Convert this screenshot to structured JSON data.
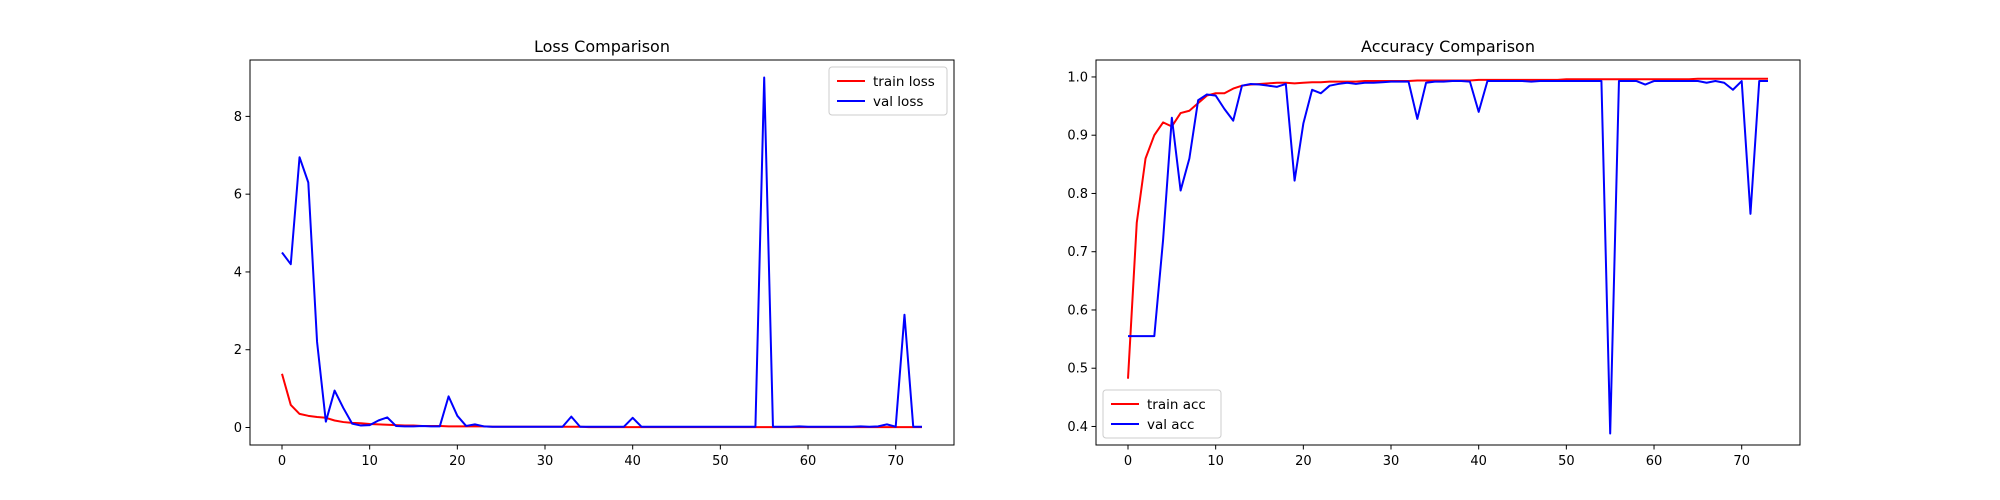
{
  "chart_data": [
    {
      "type": "line",
      "title": "Loss Comparison",
      "xlabel": "",
      "ylabel": "",
      "xlim": [
        -3.65,
        76.65
      ],
      "ylim": [
        -0.45,
        9.45
      ],
      "xticks": [
        0,
        10,
        20,
        30,
        40,
        50,
        60,
        70
      ],
      "yticks": [
        0,
        2,
        4,
        6,
        8
      ],
      "grid": false,
      "legend_position": "top-right",
      "series": [
        {
          "name": "train loss",
          "color": "#ff0000",
          "values": [
            1.38,
            0.58,
            0.35,
            0.3,
            0.27,
            0.25,
            0.18,
            0.14,
            0.12,
            0.11,
            0.09,
            0.08,
            0.07,
            0.06,
            0.05,
            0.05,
            0.04,
            0.04,
            0.04,
            0.03,
            0.03,
            0.03,
            0.03,
            0.03,
            0.02,
            0.02,
            0.02,
            0.02,
            0.02,
            0.02,
            0.02,
            0.02,
            0.02,
            0.02,
            0.02,
            0.01,
            0.01,
            0.01,
            0.01,
            0.01,
            0.01,
            0.01,
            0.01,
            0.01,
            0.01,
            0.01,
            0.01,
            0.01,
            0.01,
            0.01,
            0.01,
            0.01,
            0.01,
            0.01,
            0.01,
            0.01,
            0.01,
            0.01,
            0.01,
            0.01,
            0.01,
            0.01,
            0.01,
            0.01,
            0.01,
            0.01,
            0.01,
            0.01,
            0.01,
            0.01,
            0.01,
            0.01,
            0.01,
            0.01
          ]
        },
        {
          "name": "val loss",
          "color": "#0000ff",
          "values": [
            4.5,
            4.2,
            6.95,
            6.3,
            2.2,
            0.15,
            0.95,
            0.5,
            0.1,
            0.05,
            0.06,
            0.18,
            0.26,
            0.04,
            0.03,
            0.03,
            0.04,
            0.03,
            0.03,
            0.8,
            0.3,
            0.04,
            0.08,
            0.03,
            0.02,
            0.02,
            0.02,
            0.02,
            0.02,
            0.02,
            0.02,
            0.02,
            0.02,
            0.28,
            0.02,
            0.02,
            0.02,
            0.02,
            0.02,
            0.02,
            0.25,
            0.02,
            0.02,
            0.02,
            0.02,
            0.02,
            0.02,
            0.02,
            0.02,
            0.02,
            0.02,
            0.02,
            0.02,
            0.02,
            0.02,
            9.0,
            0.02,
            0.02,
            0.02,
            0.03,
            0.02,
            0.02,
            0.02,
            0.02,
            0.02,
            0.02,
            0.03,
            0.02,
            0.03,
            0.08,
            0.02,
            2.9,
            0.02,
            0.02
          ]
        }
      ]
    },
    {
      "type": "line",
      "title": "Accuracy Comparison",
      "xlabel": "",
      "ylabel": "",
      "xlim": [
        -3.65,
        76.65
      ],
      "ylim": [
        0.3682,
        1.0291
      ],
      "xticks": [
        0,
        10,
        20,
        30,
        40,
        50,
        60,
        70
      ],
      "yticks": [
        0.4,
        0.5,
        0.6,
        0.7,
        0.8,
        0.9,
        1.0
      ],
      "grid": false,
      "legend_position": "bottom-left",
      "series": [
        {
          "name": "train acc",
          "color": "#ff0000",
          "values": [
            0.482,
            0.75,
            0.86,
            0.9,
            0.922,
            0.915,
            0.938,
            0.942,
            0.955,
            0.968,
            0.972,
            0.972,
            0.98,
            0.985,
            0.987,
            0.988,
            0.989,
            0.99,
            0.99,
            0.989,
            0.99,
            0.991,
            0.991,
            0.992,
            0.992,
            0.992,
            0.992,
            0.993,
            0.993,
            0.993,
            0.993,
            0.993,
            0.993,
            0.994,
            0.994,
            0.994,
            0.994,
            0.994,
            0.994,
            0.994,
            0.995,
            0.995,
            0.995,
            0.995,
            0.995,
            0.995,
            0.995,
            0.995,
            0.995,
            0.995,
            0.996,
            0.996,
            0.996,
            0.996,
            0.996,
            0.996,
            0.996,
            0.996,
            0.996,
            0.996,
            0.996,
            0.996,
            0.996,
            0.996,
            0.996,
            0.997,
            0.997,
            0.997,
            0.997,
            0.997,
            0.997,
            0.997,
            0.997,
            0.997
          ]
        },
        {
          "name": "val acc",
          "color": "#0000ff",
          "values": [
            0.555,
            0.555,
            0.555,
            0.555,
            0.72,
            0.93,
            0.805,
            0.86,
            0.96,
            0.97,
            0.968,
            0.945,
            0.925,
            0.985,
            0.988,
            0.987,
            0.985,
            0.983,
            0.988,
            0.822,
            0.92,
            0.978,
            0.972,
            0.985,
            0.988,
            0.99,
            0.988,
            0.99,
            0.99,
            0.991,
            0.992,
            0.992,
            0.992,
            0.928,
            0.99,
            0.992,
            0.992,
            0.993,
            0.993,
            0.992,
            0.94,
            0.993,
            0.993,
            0.993,
            0.993,
            0.993,
            0.992,
            0.993,
            0.993,
            0.993,
            0.993,
            0.993,
            0.993,
            0.993,
            0.993,
            0.388,
            0.993,
            0.993,
            0.993,
            0.987,
            0.993,
            0.993,
            0.993,
            0.993,
            0.993,
            0.993,
            0.99,
            0.993,
            0.99,
            0.978,
            0.993,
            0.765,
            0.993,
            0.993
          ]
        }
      ]
    }
  ]
}
